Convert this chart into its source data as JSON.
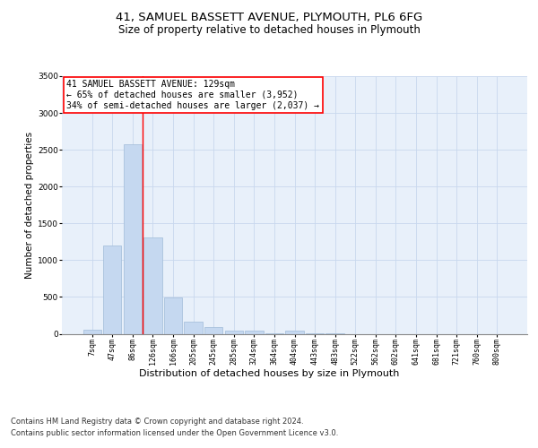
{
  "title1": "41, SAMUEL BASSETT AVENUE, PLYMOUTH, PL6 6FG",
  "title2": "Size of property relative to detached houses in Plymouth",
  "xlabel": "Distribution of detached houses by size in Plymouth",
  "ylabel": "Number of detached properties",
  "categories": [
    "7sqm",
    "47sqm",
    "86sqm",
    "126sqm",
    "166sqm",
    "205sqm",
    "245sqm",
    "285sqm",
    "324sqm",
    "364sqm",
    "404sqm",
    "443sqm",
    "483sqm",
    "522sqm",
    "562sqm",
    "602sqm",
    "641sqm",
    "681sqm",
    "721sqm",
    "760sqm",
    "800sqm"
  ],
  "values": [
    50,
    1200,
    2580,
    1310,
    490,
    160,
    90,
    40,
    40,
    10,
    40,
    5,
    5,
    0,
    0,
    0,
    0,
    0,
    0,
    0,
    0
  ],
  "bar_color": "#c5d8f0",
  "bar_edgecolor": "#a0bbd8",
  "ylim": [
    0,
    3500
  ],
  "yticks": [
    0,
    500,
    1000,
    1500,
    2000,
    2500,
    3000,
    3500
  ],
  "redline_index": 3,
  "annotation_line1": "41 SAMUEL BASSETT AVENUE: 129sqm",
  "annotation_line2": "← 65% of detached houses are smaller (3,952)",
  "annotation_line3": "34% of semi-detached houses are larger (2,037) →",
  "footer1": "Contains HM Land Registry data © Crown copyright and database right 2024.",
  "footer2": "Contains public sector information licensed under the Open Government Licence v3.0.",
  "background_color": "#ffffff",
  "plot_bg_color": "#e8f0fa",
  "grid_color": "#c8d8ee",
  "title1_fontsize": 9.5,
  "title2_fontsize": 8.5,
  "ylabel_fontsize": 7.5,
  "xlabel_fontsize": 8,
  "tick_fontsize": 6,
  "annotation_fontsize": 7,
  "footer_fontsize": 6
}
